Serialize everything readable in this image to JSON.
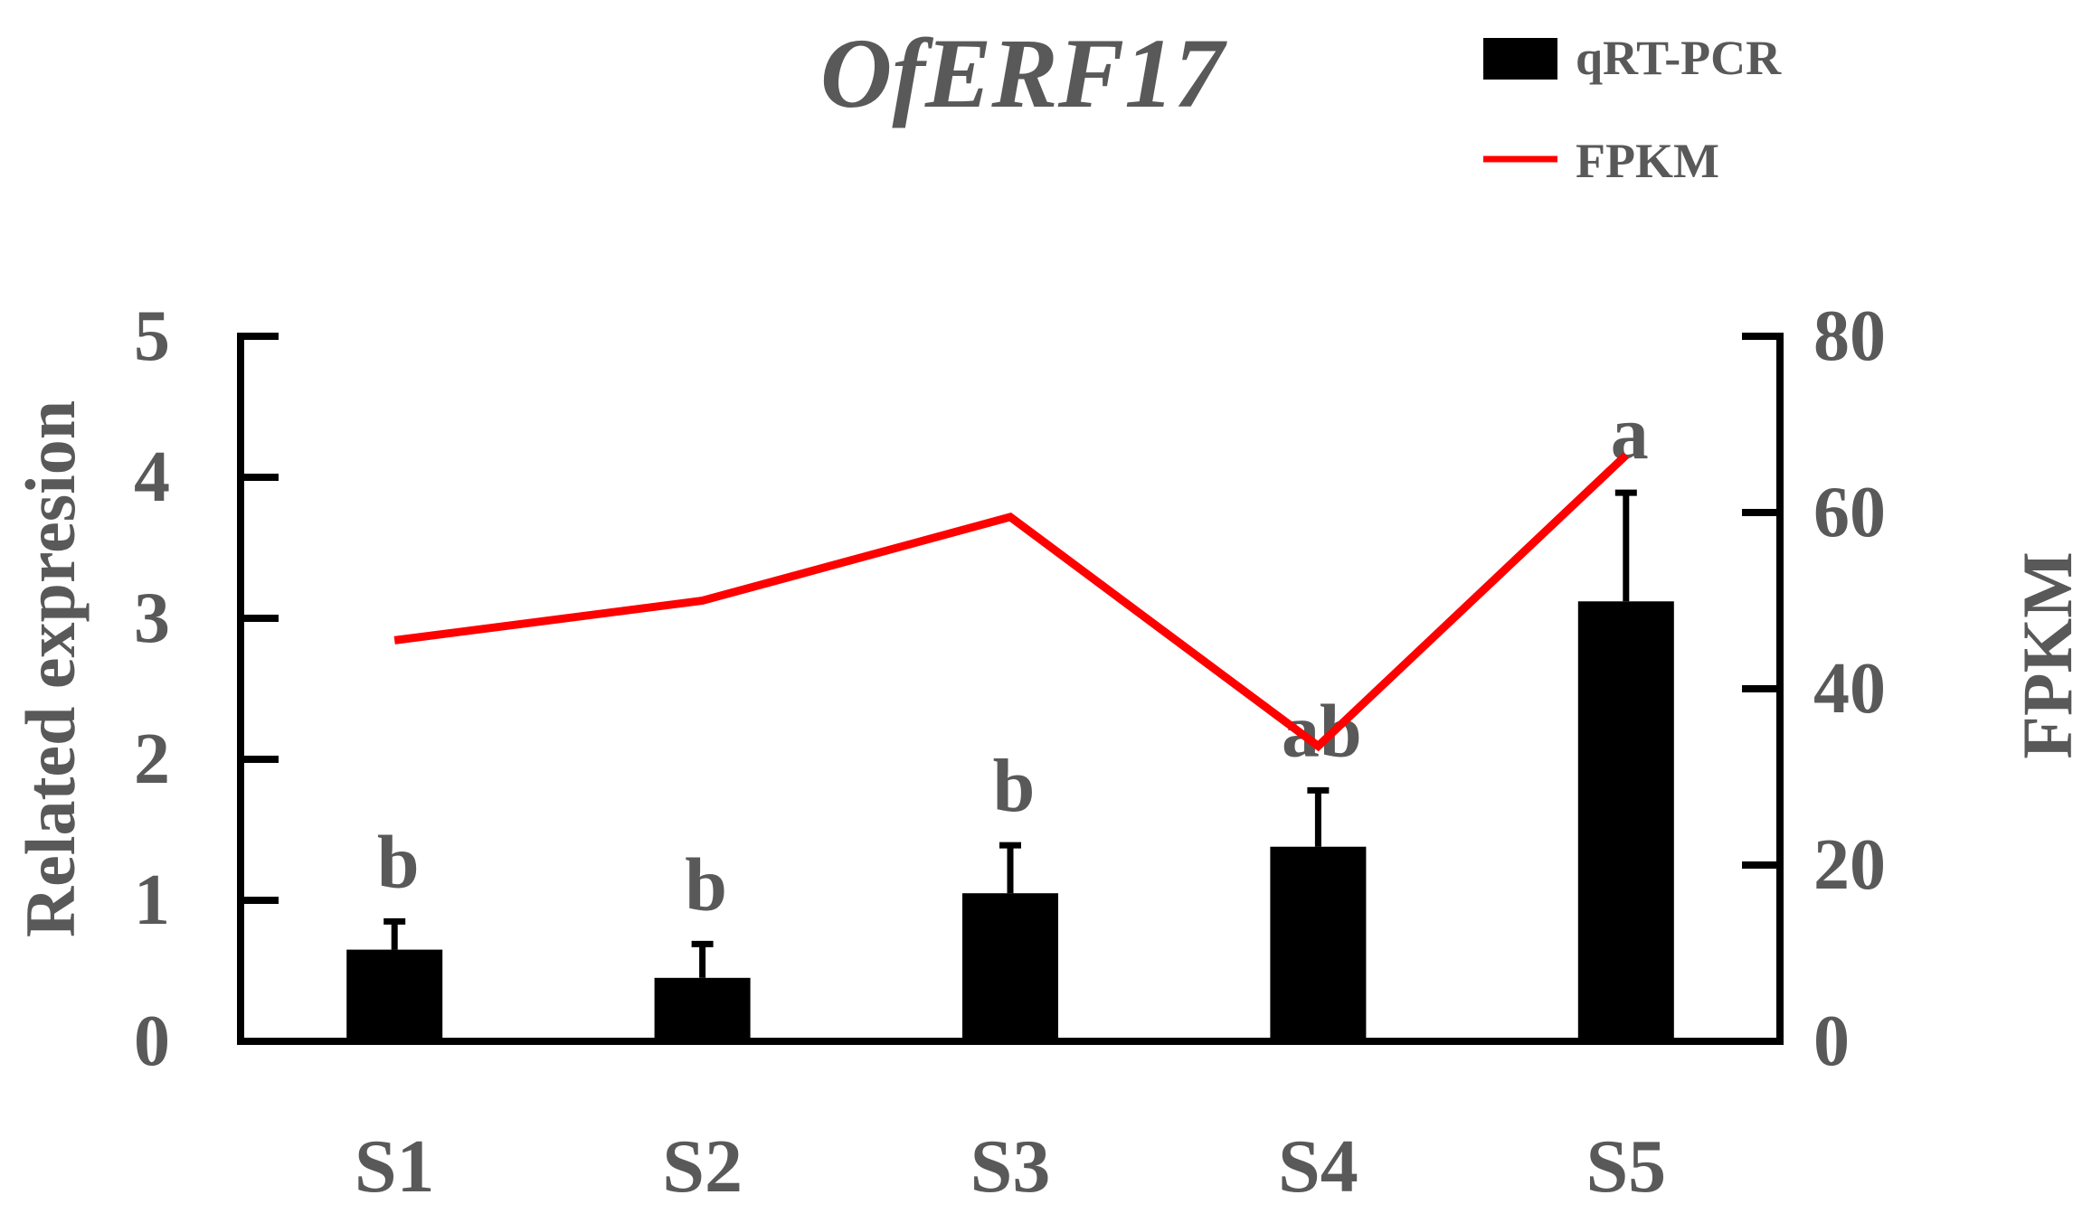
{
  "chart_data": {
    "type": "bar",
    "title": "OfERF17",
    "categories": [
      "S1",
      "S2",
      "S3",
      "S4",
      "S5"
    ],
    "series": [
      {
        "name": "qRT-PCR",
        "kind": "bar",
        "axis": "left",
        "values": [
          0.65,
          0.45,
          1.05,
          1.38,
          3.12
        ],
        "error": [
          0.2,
          0.24,
          0.34,
          0.4,
          0.77
        ],
        "labels": [
          "b",
          "b",
          "b",
          "ab",
          "a"
        ]
      },
      {
        "name": "FPKM",
        "kind": "line",
        "axis": "right",
        "values": [
          45.5,
          50.0,
          59.5,
          33.5,
          66.5
        ]
      }
    ],
    "ylabel": "Related expresion",
    "y2label": "FPKM",
    "ylim": [
      0,
      5
    ],
    "y2lim": [
      0,
      80
    ],
    "yticks": [
      "0",
      "1",
      "2",
      "3",
      "4",
      "5"
    ],
    "y2ticks": [
      "0",
      "20",
      "40",
      "60",
      "80"
    ],
    "legend_position": "top-right",
    "grid": false,
    "colors": {
      "bar": "#000000",
      "line": "#ff0000",
      "text": "#595959",
      "axis": "#000000"
    }
  }
}
